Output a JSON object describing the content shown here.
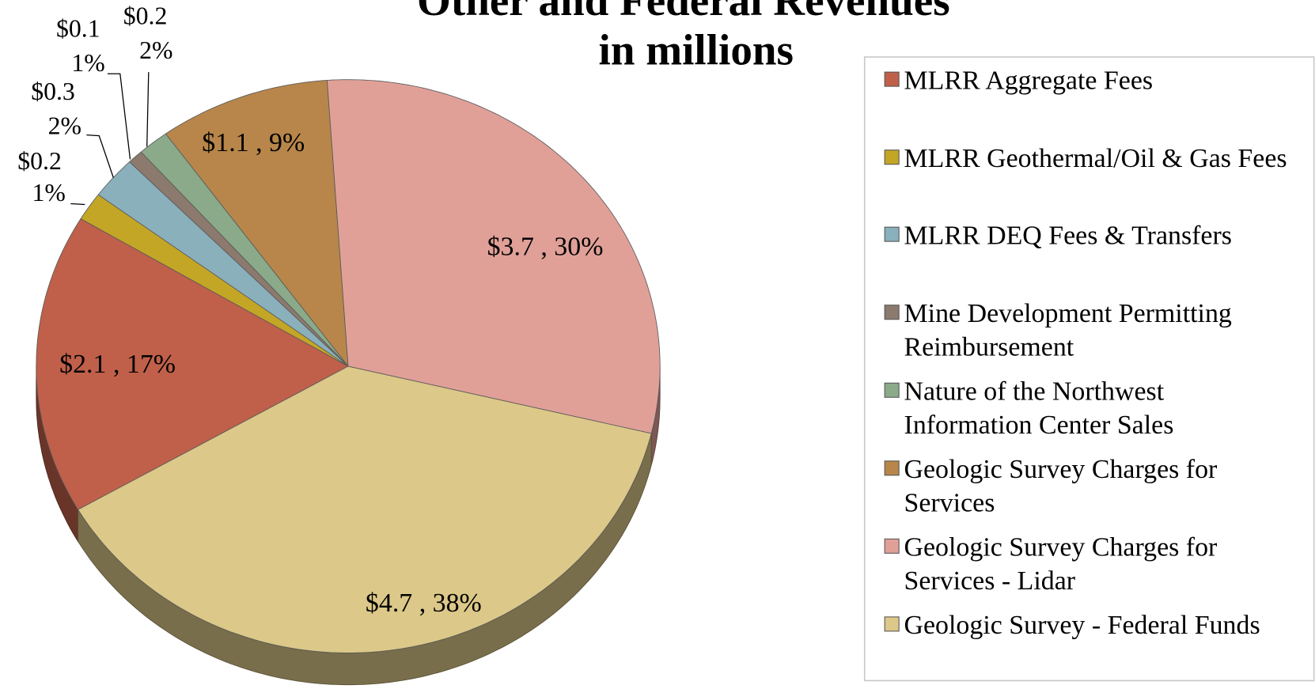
{
  "chart_data": {
    "type": "pie",
    "title": "Other and Federal Revenues",
    "subtitle": "in millions",
    "categories": [
      "MLRR Aggregate Fees",
      "MLRR Geothermal/Oil & Gas Fees",
      "MLRR DEQ Fees & Transfers",
      "Mine Development Permitting Reimbursement",
      "Nature of the Northwest Information Center Sales",
      "Geologic Survey Charges for Services",
      "Geologic Survey Charges for Services - Lidar",
      "Geologic Survey - Federal Funds"
    ],
    "values": [
      2.1,
      0.2,
      0.3,
      0.1,
      0.2,
      1.1,
      3.7,
      4.7
    ],
    "value_labels": [
      [
        "$2.1 , 17%"
      ],
      [
        "$0.2",
        "1%"
      ],
      [
        "$0.3",
        "2%"
      ],
      [
        "$0.1",
        "1%"
      ],
      [
        "$0.2",
        "2%"
      ],
      [
        "$1.1 , 9%"
      ],
      [
        "$3.7 , 30%"
      ],
      [
        "$4.7 , 38%"
      ]
    ],
    "colors": [
      "#c0604a",
      "#c4a626",
      "#8ab0bc",
      "#8c7a6e",
      "#8aaa8a",
      "#b8864a",
      "#e0a098",
      "#dcc888"
    ],
    "start_angle": 240,
    "legend": "right"
  }
}
